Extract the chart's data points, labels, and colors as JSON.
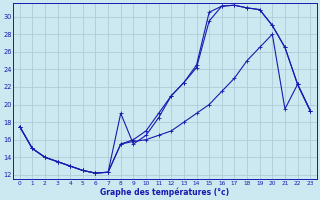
{
  "xlabel": "Graphe des températures (°c)",
  "background_color": "#cce8f0",
  "line_color": "#1a1ab0",
  "grid_color": "#b0ccd8",
  "xlim": [
    -0.5,
    23.5
  ],
  "ylim": [
    11.5,
    31.5
  ],
  "yticks": [
    12,
    14,
    16,
    18,
    20,
    22,
    24,
    26,
    28,
    30
  ],
  "xticks": [
    0,
    1,
    2,
    3,
    4,
    5,
    6,
    7,
    8,
    9,
    10,
    11,
    12,
    13,
    14,
    15,
    16,
    17,
    18,
    19,
    20,
    21,
    22,
    23
  ],
  "line1_x": [
    0,
    1,
    2,
    3,
    4,
    5,
    6,
    7,
    8,
    9,
    10,
    11,
    12,
    13,
    14,
    15,
    16,
    17,
    18,
    19,
    20,
    21,
    22,
    23
  ],
  "line1_y": [
    17.5,
    15.0,
    14.0,
    13.5,
    13.0,
    12.5,
    12.2,
    12.3,
    19.0,
    15.5,
    16.5,
    18.5,
    21.0,
    22.5,
    24.5,
    30.5,
    31.2,
    31.3,
    31.0,
    30.8,
    29.0,
    26.5,
    22.3,
    19.3
  ],
  "line2_x": [
    0,
    1,
    2,
    3,
    4,
    5,
    6,
    7,
    8,
    9,
    10,
    11,
    12,
    13,
    14,
    15,
    16,
    17,
    18,
    19,
    20,
    21,
    22,
    23
  ],
  "line2_y": [
    17.5,
    15.0,
    14.0,
    13.5,
    13.0,
    12.5,
    12.2,
    12.3,
    15.5,
    16.0,
    17.0,
    19.0,
    21.0,
    22.5,
    24.2,
    29.5,
    31.2,
    31.3,
    31.0,
    30.8,
    29.0,
    26.5,
    22.3,
    19.3
  ],
  "line3_x": [
    0,
    1,
    2,
    3,
    4,
    5,
    6,
    7,
    8,
    9,
    10,
    11,
    12,
    13,
    14,
    15,
    16,
    17,
    18,
    19,
    20,
    21,
    22,
    23
  ],
  "line3_y": [
    17.5,
    15.0,
    14.0,
    13.5,
    13.0,
    12.5,
    12.2,
    12.3,
    15.5,
    15.8,
    16.0,
    16.5,
    17.0,
    18.0,
    19.0,
    20.0,
    21.5,
    23.0,
    25.0,
    26.5,
    28.0,
    19.5,
    22.3,
    19.3
  ]
}
